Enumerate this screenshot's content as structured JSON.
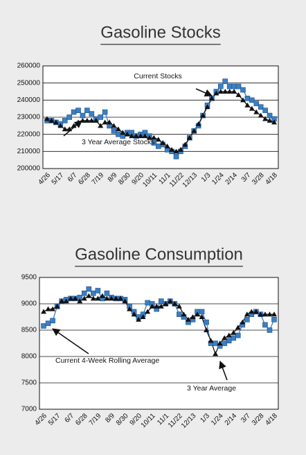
{
  "chart_data": [
    {
      "type": "line",
      "title": "Gasoline Stocks",
      "categories": [
        "4/26",
        null,
        null,
        "5/17",
        null,
        null,
        "6/7",
        null,
        null,
        "6/28",
        null,
        null,
        "7/19",
        null,
        null,
        "8/9",
        null,
        null,
        "8/30",
        null,
        null,
        "9/20",
        null,
        null,
        "10/11",
        null,
        null,
        "11/1",
        null,
        null,
        "11/22",
        null,
        null,
        "12/13",
        null,
        null,
        "1/3",
        null,
        null,
        "1/24",
        null,
        null,
        "2/14",
        null,
        null,
        "3/7",
        null,
        null,
        "3/28",
        null,
        null,
        "4/18"
      ],
      "series": [
        {
          "name": "Current Stocks",
          "color": "#3a7fc4",
          "marker": "square",
          "values": [
            228000,
            228000,
            227000,
            226000,
            228000,
            230000,
            233000,
            234000,
            231000,
            234000,
            232000,
            229000,
            230000,
            233000,
            225000,
            222000,
            220000,
            219000,
            221000,
            221000,
            219000,
            220000,
            221000,
            219000,
            215000,
            213000,
            214000,
            211000,
            210000,
            207000,
            210000,
            213000,
            218000,
            222000,
            225000,
            231000,
            237000,
            241000,
            245000,
            248000,
            251000,
            248000,
            248000,
            248000,
            246000,
            241000,
            240000,
            238000,
            236000,
            234000,
            231000,
            229000
          ]
        },
        {
          "name": "3 Year Average Stocks",
          "color": "#111111",
          "marker": "triangle",
          "values": [
            229000,
            228000,
            227000,
            225000,
            223000,
            223000,
            225000,
            227000,
            228000,
            228000,
            228000,
            228000,
            225000,
            227000,
            227000,
            225000,
            223000,
            221000,
            220000,
            219000,
            219000,
            219000,
            219000,
            218000,
            218000,
            217000,
            215000,
            213000,
            211000,
            210000,
            211000,
            214000,
            218000,
            222000,
            226000,
            231000,
            236000,
            241000,
            244000,
            245000,
            245000,
            245000,
            245000,
            243000,
            240000,
            237000,
            235000,
            233000,
            231000,
            229000,
            228000,
            227000
          ]
        }
      ],
      "annotations": [
        "Current Stocks",
        "3 Year Average Stocks"
      ],
      "ylim": [
        200000,
        260000
      ],
      "yticks": [
        200000,
        210000,
        220000,
        230000,
        240000,
        250000,
        260000
      ],
      "grid": true
    },
    {
      "type": "line",
      "title": "Gasoline Consumption",
      "categories": [
        "4/26",
        null,
        null,
        "5/17",
        null,
        null,
        "6/7",
        null,
        null,
        "6/28",
        null,
        null,
        "7/19",
        null,
        null,
        "8/9",
        null,
        null,
        "8/30",
        null,
        null,
        "9/20",
        null,
        null,
        "10/11",
        null,
        null,
        "11/1",
        null,
        null,
        "11/22",
        null,
        null,
        "12/13",
        null,
        null,
        "1/3",
        null,
        null,
        "1/24",
        null,
        null,
        "2/14",
        null,
        null,
        "3/7",
        null,
        null,
        "3/28",
        null,
        null,
        "4/18"
      ],
      "series": [
        {
          "name": "Current 4-Week Rolling Average",
          "color": "#3a7fc4",
          "marker": "square",
          "values": [
            8580,
            8630,
            8680,
            8950,
            9050,
            9080,
            9100,
            9100,
            9120,
            9200,
            9280,
            9200,
            9250,
            9100,
            9200,
            9120,
            9100,
            9100,
            9080,
            8950,
            8850,
            8750,
            8800,
            9020,
            9000,
            8900,
            9050,
            9000,
            9050,
            9000,
            8800,
            8750,
            8650,
            8700,
            8850,
            8850,
            8650,
            8250,
            8250,
            8200,
            8250,
            8300,
            8350,
            8400,
            8600,
            8700,
            8800,
            8850,
            8800,
            8600,
            8500,
            8700
          ]
        },
        {
          "name": "3 Year Average",
          "color": "#111111",
          "marker": "triangle",
          "values": [
            8850,
            8900,
            8900,
            8950,
            9050,
            9050,
            9100,
            9100,
            9050,
            9100,
            9150,
            9100,
            9100,
            9150,
            9100,
            9100,
            9100,
            9100,
            9050,
            8900,
            8800,
            8700,
            8750,
            8850,
            8950,
            8950,
            8950,
            9000,
            9050,
            9000,
            8950,
            8800,
            8700,
            8750,
            8800,
            8750,
            8500,
            8300,
            8050,
            8250,
            8350,
            8400,
            8450,
            8550,
            8650,
            8800,
            8850,
            8850,
            8800,
            8800,
            8800,
            8800
          ]
        }
      ],
      "annotations": [
        "Current 4-Week Rolling Average",
        "3 Year Average"
      ],
      "ylim": [
        7000,
        9500
      ],
      "yticks": [
        7000,
        7500,
        8000,
        8500,
        9000,
        9500
      ],
      "grid": true
    }
  ]
}
